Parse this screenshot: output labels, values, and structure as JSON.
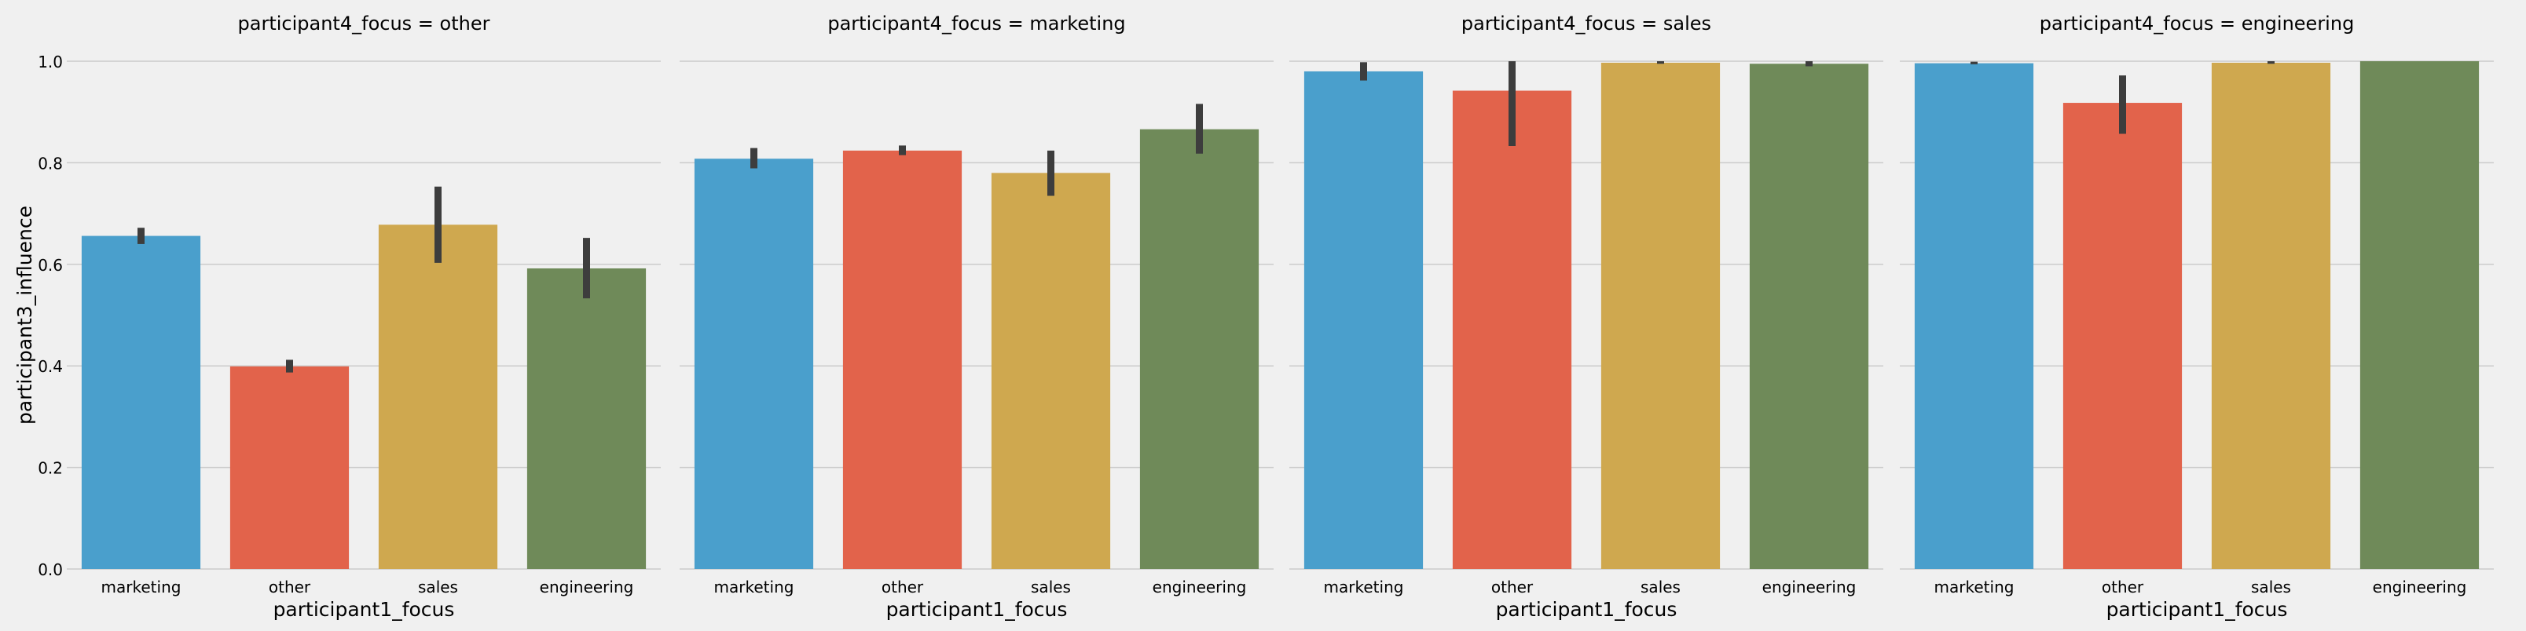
{
  "chart_data": {
    "type": "bar",
    "facet_title_prefix": "participant4_focus = ",
    "categories": [
      "marketing",
      "other",
      "sales",
      "engineering"
    ],
    "xlabel": "participant1_focus",
    "ylabel": "participant3_influence",
    "ylim": [
      0,
      1.0
    ],
    "yticks": [
      "0.0",
      "0.2",
      "0.4",
      "0.6",
      "0.8",
      "1.0"
    ],
    "grid": true,
    "colors": [
      "#4a9fcc",
      "#e2634b",
      "#cfa84f",
      "#6f8a59"
    ],
    "errorbar_color": "#3d3d3d",
    "panels": [
      {
        "facet": "other",
        "title": "participant4_focus = other",
        "values": [
          0.656,
          0.399,
          0.678,
          0.592
        ],
        "error_low": [
          0.64,
          0.387,
          0.603,
          0.533
        ],
        "error_high": [
          0.672,
          0.412,
          0.753,
          0.652
        ]
      },
      {
        "facet": "marketing",
        "title": "participant4_focus = marketing",
        "values": [
          0.808,
          0.824,
          0.78,
          0.866
        ],
        "error_low": [
          0.789,
          0.815,
          0.735,
          0.818
        ],
        "error_high": [
          0.829,
          0.834,
          0.824,
          0.916
        ]
      },
      {
        "facet": "sales",
        "title": "participant4_focus = sales",
        "values": [
          0.98,
          0.942,
          0.997,
          0.995
        ],
        "error_low": [
          0.962,
          0.833,
          0.995,
          0.99
        ],
        "error_high": [
          0.998,
          1.0,
          1.0,
          1.0
        ]
      },
      {
        "facet": "engineering",
        "title": "participant4_focus = engineering",
        "values": [
          0.996,
          0.918,
          0.997,
          1.0
        ],
        "error_low": [
          0.994,
          0.857,
          0.995,
          1.0
        ],
        "error_high": [
          0.999,
          0.972,
          1.0,
          1.0
        ]
      }
    ]
  }
}
